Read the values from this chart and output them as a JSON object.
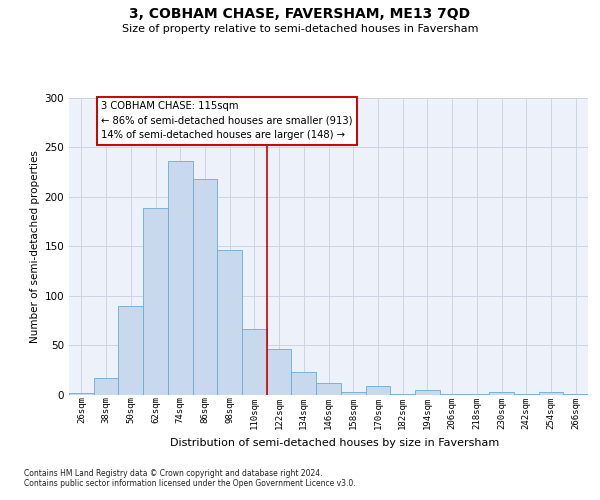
{
  "title": "3, COBHAM CHASE, FAVERSHAM, ME13 7QD",
  "subtitle": "Size of property relative to semi-detached houses in Faversham",
  "xlabel": "Distribution of semi-detached houses by size in Faversham",
  "ylabel": "Number of semi-detached properties",
  "footer_line1": "Contains HM Land Registry data © Crown copyright and database right 2024.",
  "footer_line2": "Contains public sector information licensed under the Open Government Licence v3.0.",
  "annotation_line1": "3 COBHAM CHASE: 115sqm",
  "annotation_line2": "← 86% of semi-detached houses are smaller (913)",
  "annotation_line3": "14% of semi-detached houses are larger (148) →",
  "bar_labels": [
    "26sqm",
    "38sqm",
    "50sqm",
    "62sqm",
    "74sqm",
    "86sqm",
    "98sqm",
    "110sqm",
    "122sqm",
    "134sqm",
    "146sqm",
    "158sqm",
    "170sqm",
    "182sqm",
    "194sqm",
    "206sqm",
    "218sqm",
    "230sqm",
    "242sqm",
    "254sqm",
    "266sqm"
  ],
  "bar_values": [
    2,
    17,
    90,
    189,
    236,
    218,
    146,
    67,
    46,
    23,
    12,
    3,
    9,
    1,
    5,
    1,
    1,
    3,
    1,
    3,
    1
  ],
  "bar_color": "#c8d9ee",
  "bar_edge_color": "#6aaad4",
  "grid_color": "#cdd5e5",
  "background_color": "#edf1fa",
  "vline_color": "#cc0000",
  "vline_x": 7.5,
  "ylim": [
    0,
    300
  ],
  "yticks": [
    0,
    50,
    100,
    150,
    200,
    250,
    300
  ],
  "title_fontsize": 10,
  "subtitle_fontsize": 8,
  "ylabel_fontsize": 7.5,
  "xlabel_fontsize": 8,
  "tick_fontsize": 6.5,
  "footer_fontsize": 5.5,
  "ann_fontsize": 7.2
}
